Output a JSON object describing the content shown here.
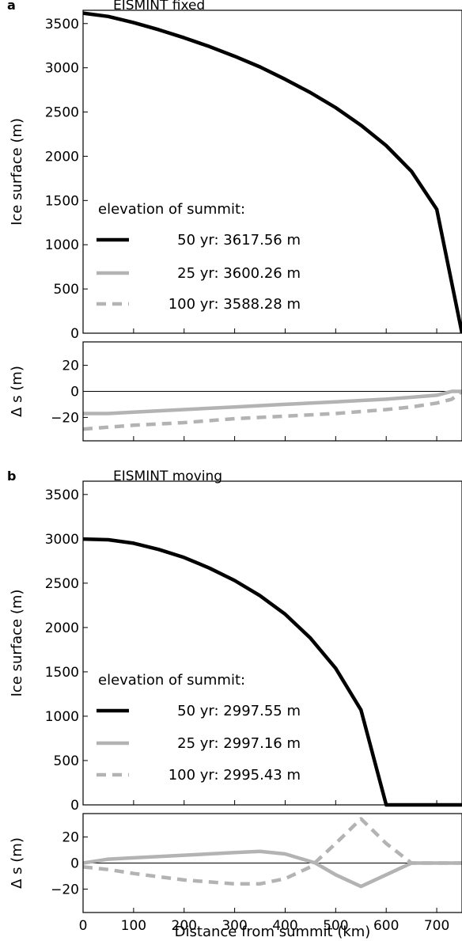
{
  "chart_data": [
    {
      "type": "line",
      "panel_letter": "a",
      "title": "EISMINT fixed",
      "ylabel": "Ice surface (m)",
      "xlim": [
        0,
        750
      ],
      "ylim": [
        0,
        3650
      ],
      "yticks": [
        0,
        500,
        1000,
        1500,
        2000,
        2500,
        3000,
        3500
      ],
      "legend_title": "elevation of summit:",
      "legend_placement": "lower-left",
      "series": [
        {
          "name": "50 yr: 3617.56 m",
          "color": "#000000",
          "dash": "solid",
          "x": [
            0,
            50,
            100,
            150,
            200,
            250,
            300,
            350,
            400,
            450,
            500,
            550,
            600,
            650,
            700,
            750
          ],
          "y": [
            3618,
            3580,
            3510,
            3430,
            3340,
            3240,
            3130,
            3010,
            2870,
            2720,
            2550,
            2350,
            2120,
            1830,
            1400,
            0
          ]
        },
        {
          "name": "25 yr: 3600.26 m",
          "color": "#b3b3b3",
          "dash": "solid",
          "x": [],
          "y": []
        },
        {
          "name": "100 yr: 3588.28 m",
          "color": "#b3b3b3",
          "dash": "dashed",
          "x": [],
          "y": []
        }
      ]
    },
    {
      "type": "line",
      "panel_letter": "",
      "title": "",
      "ylabel": "Δ s (m)",
      "xlim": [
        0,
        750
      ],
      "ylim": [
        -38,
        38
      ],
      "yticks": [
        -20,
        0,
        20
      ],
      "zero_line": true,
      "series": [
        {
          "name": "",
          "color": "#b3b3b3",
          "dash": "solid",
          "x": [
            0,
            50,
            100,
            200,
            300,
            400,
            500,
            600,
            700,
            730,
            750
          ],
          "y": [
            -17,
            -17,
            -16,
            -14,
            -12,
            -10,
            -8,
            -6,
            -3,
            0,
            0
          ]
        },
        {
          "name": "",
          "color": "#b3b3b3",
          "dash": "dashed",
          "x": [
            0,
            100,
            200,
            300,
            400,
            500,
            600,
            650,
            700,
            730,
            750
          ],
          "y": [
            -29,
            -26,
            -24,
            -21,
            -19,
            -17,
            -14,
            -12,
            -9,
            -6,
            0
          ]
        }
      ]
    },
    {
      "type": "line",
      "panel_letter": "b",
      "title": "EISMINT moving",
      "ylabel": "Ice surface (m)",
      "xlim": [
        0,
        750
      ],
      "ylim": [
        0,
        3650
      ],
      "yticks": [
        0,
        500,
        1000,
        1500,
        2000,
        2500,
        3000,
        3500
      ],
      "legend_title": "elevation of summit:",
      "legend_placement": "lower-left",
      "series": [
        {
          "name": "50 yr: 2997.55 m",
          "color": "#000000",
          "dash": "solid",
          "x": [
            0,
            50,
            100,
            150,
            200,
            250,
            300,
            350,
            400,
            450,
            500,
            550,
            600,
            650,
            700,
            750
          ],
          "y": [
            2998,
            2990,
            2950,
            2880,
            2790,
            2670,
            2530,
            2360,
            2150,
            1880,
            1540,
            1070,
            0,
            0,
            0,
            0
          ]
        },
        {
          "name": "25 yr: 2997.16 m",
          "color": "#b3b3b3",
          "dash": "solid",
          "x": [],
          "y": []
        },
        {
          "name": "100 yr: 2995.43 m",
          "color": "#b3b3b3",
          "dash": "dashed",
          "x": [],
          "y": []
        }
      ]
    },
    {
      "type": "line",
      "panel_letter": "",
      "title": "",
      "ylabel": "Δ s (m)",
      "xlabel": "Distance from summit (km)",
      "xlim": [
        0,
        750
      ],
      "ylim": [
        -38,
        38
      ],
      "yticks": [
        -20,
        0,
        20
      ],
      "xticks": [
        0,
        100,
        200,
        300,
        400,
        500,
        600,
        700
      ],
      "zero_line": true,
      "series": [
        {
          "name": "",
          "color": "#b3b3b3",
          "dash": "solid",
          "x": [
            0,
            50,
            100,
            200,
            300,
            350,
            400,
            460,
            500,
            550,
            600,
            650,
            700,
            750
          ],
          "y": [
            0,
            3,
            4,
            6,
            8,
            9,
            7,
            0,
            -9,
            -18,
            -9,
            0,
            0,
            0
          ]
        },
        {
          "name": "",
          "color": "#b3b3b3",
          "dash": "dashed",
          "x": [
            0,
            50,
            100,
            200,
            300,
            350,
            400,
            450,
            500,
            550,
            600,
            650,
            700,
            750
          ],
          "y": [
            -3,
            -5,
            -8,
            -13,
            -16,
            -16,
            -12,
            -3,
            15,
            34,
            15,
            0,
            0,
            0
          ]
        }
      ]
    }
  ]
}
